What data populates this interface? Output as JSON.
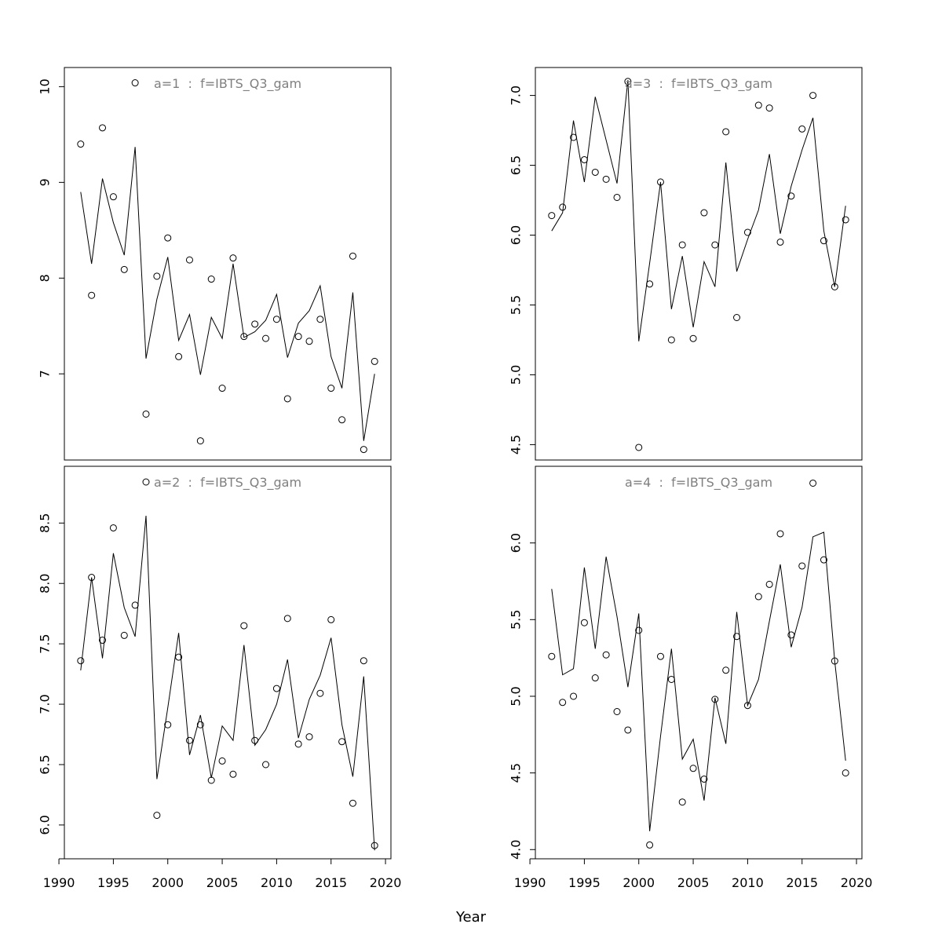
{
  "chart_data": {
    "type": "scatter",
    "xlabel": "Year",
    "grid": false,
    "x_ticks": [
      1990,
      1995,
      2000,
      2005,
      2010,
      2015,
      2020
    ],
    "x_range": [
      1990,
      2020
    ],
    "years": [
      1992,
      1993,
      1994,
      1995,
      1996,
      1997,
      1998,
      1999,
      2000,
      2001,
      2002,
      2003,
      2004,
      2005,
      2006,
      2007,
      2008,
      2009,
      2010,
      2011,
      2012,
      2013,
      2014,
      2015,
      2016,
      2017,
      2018,
      2019
    ],
    "panels": [
      {
        "title": "a=1  :  f=IBTS_Q3_gam",
        "ylim": [
          6.1,
          10.2
        ],
        "y_ticks": [
          "7",
          "8",
          "9",
          "10"
        ],
        "observed": [
          9.4,
          7.82,
          9.57,
          8.85,
          8.09,
          10.04,
          6.58,
          8.02,
          8.42,
          7.18,
          8.19,
          6.3,
          7.99,
          6.85,
          8.21,
          7.39,
          7.52,
          7.37,
          7.57,
          6.74,
          7.39,
          7.34,
          7.57,
          6.85,
          6.52,
          8.23,
          6.21,
          7.13
        ],
        "fitted": [
          8.9,
          8.15,
          9.04,
          8.58,
          8.24,
          9.37,
          7.16,
          7.78,
          8.22,
          7.35,
          7.62,
          6.99,
          7.59,
          7.37,
          8.15,
          7.38,
          7.44,
          7.56,
          7.83,
          7.17,
          7.53,
          7.66,
          7.92,
          7.18,
          6.85,
          7.85,
          6.3,
          7.0
        ]
      },
      {
        "title": "a=2  :  f=IBTS_Q3_gam",
        "ylim": [
          5.72,
          8.97
        ],
        "y_ticks": [
          "6.0",
          "6.5",
          "7.0",
          "7.5",
          "8.0",
          "8.5"
        ],
        "observed": [
          7.36,
          8.05,
          7.53,
          8.46,
          7.57,
          7.82,
          8.84,
          6.08,
          6.83,
          7.39,
          6.7,
          6.83,
          6.37,
          6.53,
          6.42,
          7.65,
          6.7,
          6.5,
          7.13,
          7.71,
          6.67,
          6.73,
          7.09,
          7.7,
          6.69,
          6.18,
          7.36,
          5.83
        ],
        "fitted": [
          7.28,
          8.05,
          7.38,
          8.25,
          7.8,
          7.56,
          8.56,
          6.38,
          6.97,
          7.59,
          6.58,
          6.91,
          6.39,
          6.82,
          6.7,
          7.49,
          6.66,
          6.79,
          7.0,
          7.37,
          6.72,
          7.04,
          7.24,
          7.55,
          6.83,
          6.4,
          7.23,
          5.79
        ]
      },
      {
        "title": "a=3  :  f=IBTS_Q3_gam",
        "ylim": [
          4.39,
          7.2
        ],
        "y_ticks": [
          "4.5",
          "5.0",
          "5.5",
          "6.0",
          "6.5",
          "7.0"
        ],
        "observed": [
          6.14,
          6.2,
          6.7,
          6.54,
          6.45,
          6.4,
          6.27,
          7.1,
          4.48,
          5.65,
          6.38,
          5.25,
          5.93,
          5.26,
          6.16,
          5.93,
          6.74,
          5.41,
          6.02,
          6.93,
          6.91,
          5.95,
          6.28,
          6.76,
          7.0,
          5.96,
          5.63,
          6.11
        ],
        "fitted": [
          6.03,
          6.16,
          6.82,
          6.38,
          6.99,
          6.68,
          6.37,
          7.11,
          5.24,
          5.8,
          6.38,
          5.47,
          5.85,
          5.34,
          5.81,
          5.63,
          6.52,
          5.74,
          5.97,
          6.18,
          6.58,
          6.01,
          6.35,
          6.61,
          6.84,
          6.03,
          5.63,
          6.21
        ]
      },
      {
        "title": "a=4  :  f=IBTS_Q3_gam",
        "ylim": [
          3.94,
          6.5
        ],
        "y_ticks": [
          "4.0",
          "4.5",
          "5.0",
          "5.5",
          "6.0"
        ],
        "observed": [
          5.26,
          4.96,
          5.0,
          5.48,
          5.12,
          5.27,
          4.9,
          4.78,
          5.43,
          4.03,
          5.26,
          5.11,
          4.31,
          4.53,
          4.46,
          4.98,
          5.17,
          5.39,
          4.94,
          5.65,
          5.73,
          6.06,
          5.4,
          5.85,
          6.39,
          5.89,
          5.23,
          4.5
        ],
        "fitted": [
          5.7,
          5.14,
          5.18,
          5.84,
          5.31,
          5.91,
          5.52,
          5.06,
          5.54,
          4.12,
          4.74,
          5.31,
          4.59,
          4.72,
          4.32,
          4.99,
          4.69,
          5.55,
          4.94,
          5.11,
          5.49,
          5.86,
          5.32,
          5.58,
          6.04,
          6.07,
          5.23,
          4.58
        ]
      }
    ]
  }
}
